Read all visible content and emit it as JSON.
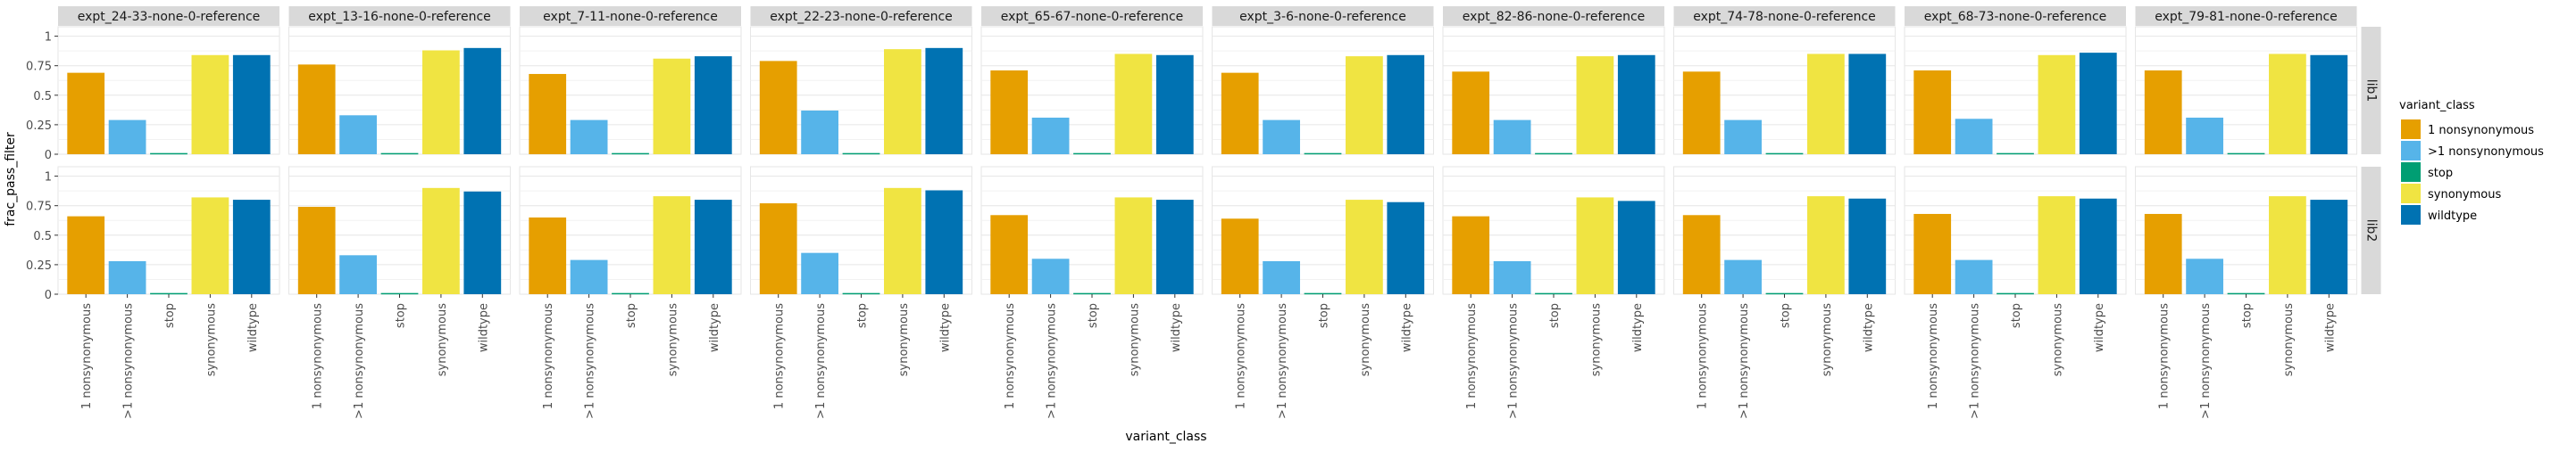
{
  "chart_data": {
    "type": "bar",
    "facet_type": "grid",
    "xlabel": "variant_class",
    "ylabel": "frac_pass_filter",
    "ylim": [
      0,
      1.08
    ],
    "yticks": [
      0,
      0.25,
      0.5,
      0.75,
      1
    ],
    "ytick_labels": [
      "0",
      "0.25",
      "0.5",
      "0.75",
      "1"
    ],
    "categories": [
      "1 nonsynonymous",
      ">1 nonsynonymous",
      "stop",
      "synonymous",
      "wildtype"
    ],
    "colors": [
      "#E69F00",
      "#56B4E9",
      "#009E73",
      "#F0E442",
      "#0072B2"
    ],
    "grid": true,
    "legend": {
      "title": "variant_class",
      "position": "right",
      "entries": [
        "1 nonsynonymous",
        ">1 nonsynonymous",
        "stop",
        "synonymous",
        "wildtype"
      ]
    },
    "columns": [
      "expt_24-33-none-0-reference",
      "expt_13-16-none-0-reference",
      "expt_7-11-none-0-reference",
      "expt_22-23-none-0-reference",
      "expt_65-67-none-0-reference",
      "expt_3-6-none-0-reference",
      "expt_82-86-none-0-reference",
      "expt_74-78-none-0-reference",
      "expt_68-73-none-0-reference",
      "expt_79-81-none-0-reference"
    ],
    "rows": [
      "lib1",
      "lib2"
    ],
    "values": [
      [
        [
          0.69,
          0.29,
          0.01,
          0.84,
          0.84
        ],
        [
          0.76,
          0.33,
          0.01,
          0.88,
          0.9
        ],
        [
          0.68,
          0.29,
          0.01,
          0.81,
          0.83
        ],
        [
          0.79,
          0.37,
          0.01,
          0.89,
          0.9
        ],
        [
          0.71,
          0.31,
          0.01,
          0.85,
          0.84
        ],
        [
          0.69,
          0.29,
          0.01,
          0.83,
          0.84
        ],
        [
          0.7,
          0.29,
          0.01,
          0.83,
          0.84
        ],
        [
          0.7,
          0.29,
          0.01,
          0.85,
          0.85
        ],
        [
          0.71,
          0.3,
          0.01,
          0.84,
          0.86
        ],
        [
          0.71,
          0.31,
          0.01,
          0.85,
          0.84
        ]
      ],
      [
        [
          0.66,
          0.28,
          0.01,
          0.82,
          0.8
        ],
        [
          0.74,
          0.33,
          0.01,
          0.9,
          0.87
        ],
        [
          0.65,
          0.29,
          0.01,
          0.83,
          0.8
        ],
        [
          0.77,
          0.35,
          0.01,
          0.9,
          0.88
        ],
        [
          0.67,
          0.3,
          0.01,
          0.82,
          0.8
        ],
        [
          0.64,
          0.28,
          0.01,
          0.8,
          0.78
        ],
        [
          0.66,
          0.28,
          0.01,
          0.82,
          0.79
        ],
        [
          0.67,
          0.29,
          0.01,
          0.83,
          0.81
        ],
        [
          0.68,
          0.29,
          0.01,
          0.83,
          0.81
        ],
        [
          0.68,
          0.3,
          0.01,
          0.83,
          0.8
        ]
      ]
    ]
  }
}
